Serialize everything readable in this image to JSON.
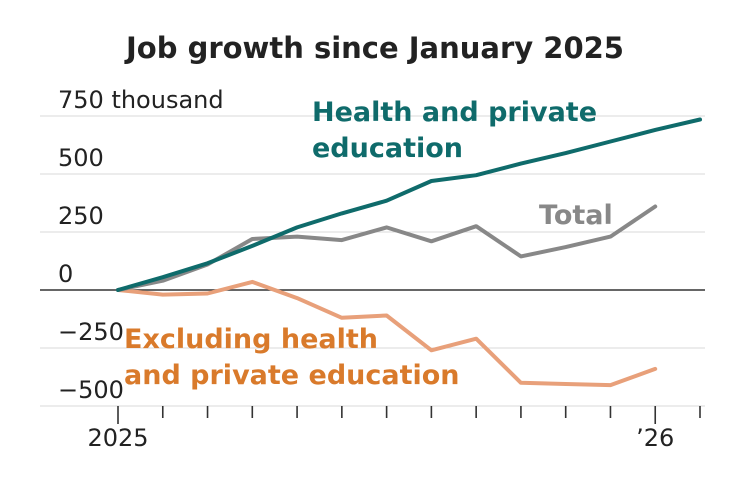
{
  "chart_data": {
    "type": "line",
    "title": "Job growth since January 2025",
    "y_unit": "thousand",
    "ylim": [
      -500,
      750
    ],
    "y_ticks": [
      {
        "value": 750,
        "label": "750 thousand"
      },
      {
        "value": 500,
        "label": "500"
      },
      {
        "value": 250,
        "label": "250"
      },
      {
        "value": 0,
        "label": "0"
      },
      {
        "value": -250,
        "label": "−250"
      },
      {
        "value": -500,
        "label": "−500"
      }
    ],
    "x_ticks": [
      {
        "index": 0,
        "label": "2025"
      },
      {
        "index": 12,
        "label": "’26"
      }
    ],
    "x_count": 14,
    "series": [
      {
        "name": "Health and private education",
        "label_lines": [
          "Health and private",
          "education"
        ],
        "color": "#0f6b6b",
        "values": [
          0,
          55,
          115,
          190,
          270,
          330,
          385,
          470,
          495,
          545,
          590,
          640,
          690,
          735
        ]
      },
      {
        "name": "Total",
        "label_lines": [
          "Total"
        ],
        "color": "#888888",
        "values": [
          0,
          40,
          110,
          220,
          230,
          215,
          270,
          210,
          275,
          145,
          185,
          230,
          360
        ]
      },
      {
        "name": "Excluding health and private education",
        "label_lines": [
          "Excluding health",
          "and private education"
        ],
        "color": "#e8a07a",
        "label_color": "#d97a2b",
        "values": [
          0,
          -20,
          -15,
          35,
          -35,
          -120,
          -110,
          -260,
          -210,
          -400,
          -405,
          -410,
          -340
        ]
      }
    ]
  }
}
